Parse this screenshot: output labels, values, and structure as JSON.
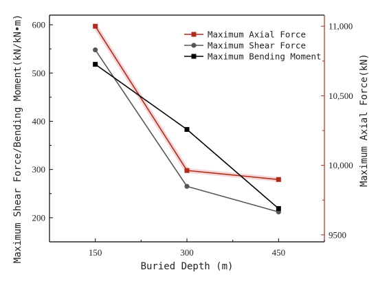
{
  "chart_data": {
    "type": "line",
    "x": [
      150,
      300,
      450
    ],
    "xlabel": "Buried Depth (m)",
    "ylabel_left": "Maximum Shear Force/Bending Moment(kN/kN•m)",
    "ylabel_right": "Maximum Axial Force(kN)",
    "xlim": [
      75,
      525
    ],
    "ylim_left": [
      150,
      620
    ],
    "ylim_right": [
      9450,
      11080
    ],
    "xticks": [
      150,
      300,
      450
    ],
    "yticks_left": [
      200,
      300,
      400,
      500,
      600
    ],
    "yticks_right": [
      9500,
      10000,
      10500,
      11000
    ],
    "ytick_labels_right": [
      "9500",
      "10,000",
      "10,500",
      "11,000"
    ],
    "legend_position": "top-right",
    "grid": false,
    "series": [
      {
        "name": "Maximum Axial Force",
        "axis": "right",
        "values": [
          11000,
          9963,
          9898
        ],
        "color": "#b22a1a",
        "marker": "square"
      },
      {
        "name": "Maximum Shear Force",
        "axis": "left",
        "values": [
          548,
          265,
          212
        ],
        "color": "#555555",
        "marker": "circle"
      },
      {
        "name": "Maximum Bending Moment",
        "axis": "left",
        "values": [
          518,
          383,
          219
        ],
        "color": "#000000",
        "marker": "square"
      }
    ]
  }
}
